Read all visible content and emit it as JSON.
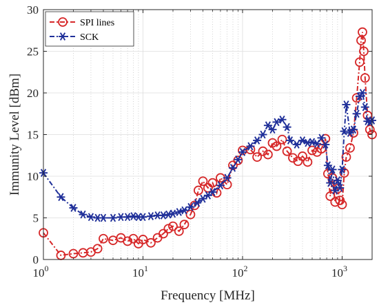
{
  "chart_data": {
    "type": "line",
    "title": "",
    "xlabel": "Frequency [MHz]",
    "ylabel": "Immunity Level  [dBm]",
    "xscale": "log",
    "xlim": [
      1,
      2000
    ],
    "ylim": [
      0,
      30
    ],
    "yticks": [
      0,
      5,
      10,
      15,
      20,
      25,
      30
    ],
    "xticks": [
      1,
      10,
      100,
      1000
    ],
    "xtick_labels": [
      {
        "base": "10",
        "exp": "0"
      },
      {
        "base": "10",
        "exp": "1"
      },
      {
        "base": "10",
        "exp": "2"
      },
      {
        "base": "10",
        "exp": "3"
      }
    ],
    "grid": true,
    "legend_position": "top-left",
    "series": [
      {
        "name": "SPI lines",
        "color": "#d62728",
        "marker": "circle",
        "points": [
          [
            1.0,
            3.2
          ],
          [
            1.5,
            0.5
          ],
          [
            2.0,
            0.7
          ],
          [
            2.5,
            0.8
          ],
          [
            3.0,
            0.9
          ],
          [
            3.5,
            1.3
          ],
          [
            4.0,
            2.5
          ],
          [
            5.0,
            2.3
          ],
          [
            6.0,
            2.6
          ],
          [
            7.0,
            2.2
          ],
          [
            8.0,
            2.5
          ],
          [
            9.0,
            1.9
          ],
          [
            10.0,
            2.4
          ],
          [
            12.0,
            2.0
          ],
          [
            14.0,
            2.6
          ],
          [
            16.0,
            3.1
          ],
          [
            18.0,
            3.7
          ],
          [
            20.0,
            4.0
          ],
          [
            23.0,
            3.4
          ],
          [
            26.0,
            4.2
          ],
          [
            30.0,
            5.4
          ],
          [
            33.0,
            6.5
          ],
          [
            36.0,
            8.3
          ],
          [
            40.0,
            9.4
          ],
          [
            45.0,
            8.6
          ],
          [
            50.0,
            9.2
          ],
          [
            55.0,
            8.0
          ],
          [
            60.0,
            9.8
          ],
          [
            70.0,
            9.0
          ],
          [
            80.0,
            11.3
          ],
          [
            90.0,
            11.9
          ],
          [
            100.0,
            13.1
          ],
          [
            120.0,
            13.2
          ],
          [
            140.0,
            12.3
          ],
          [
            160.0,
            13.0
          ],
          [
            180.0,
            12.6
          ],
          [
            200.0,
            14.0
          ],
          [
            220.0,
            13.6
          ],
          [
            250.0,
            14.4
          ],
          [
            280.0,
            13.0
          ],
          [
            320.0,
            12.2
          ],
          [
            360.0,
            11.8
          ],
          [
            400.0,
            12.4
          ],
          [
            450.0,
            11.7
          ],
          [
            500.0,
            13.1
          ],
          [
            560.0,
            12.9
          ],
          [
            620.0,
            13.3
          ],
          [
            680.0,
            14.5
          ],
          [
            720.0,
            10.3
          ],
          [
            760.0,
            7.6
          ],
          [
            800.0,
            9.8
          ],
          [
            850.0,
            6.9
          ],
          [
            900.0,
            8.5
          ],
          [
            950.0,
            7.1
          ],
          [
            1000.0,
            6.6
          ],
          [
            1050.0,
            10.4
          ],
          [
            1100.0,
            12.3
          ],
          [
            1200.0,
            13.4
          ],
          [
            1300.0,
            15.2
          ],
          [
            1400.0,
            19.4
          ],
          [
            1500.0,
            23.7
          ],
          [
            1550.0,
            26.3
          ],
          [
            1600.0,
            27.3
          ],
          [
            1650.0,
            25.0
          ],
          [
            1700.0,
            21.8
          ],
          [
            1800.0,
            17.3
          ],
          [
            1900.0,
            15.6
          ],
          [
            2000.0,
            15.0
          ]
        ]
      },
      {
        "name": "SCK",
        "color": "#1f2f99",
        "marker": "asterisk",
        "points": [
          [
            1.0,
            10.4
          ],
          [
            1.5,
            7.5
          ],
          [
            2.0,
            6.2
          ],
          [
            2.5,
            5.4
          ],
          [
            3.0,
            5.1
          ],
          [
            3.5,
            5.0
          ],
          [
            4.0,
            5.0
          ],
          [
            5.0,
            5.0
          ],
          [
            6.0,
            5.1
          ],
          [
            7.0,
            5.1
          ],
          [
            8.0,
            5.2
          ],
          [
            9.0,
            5.1
          ],
          [
            10.0,
            5.1
          ],
          [
            12.0,
            5.2
          ],
          [
            14.0,
            5.3
          ],
          [
            16.0,
            5.3
          ],
          [
            18.0,
            5.4
          ],
          [
            20.0,
            5.5
          ],
          [
            23.0,
            5.7
          ],
          [
            26.0,
            5.9
          ],
          [
            30.0,
            6.3
          ],
          [
            35.0,
            6.8
          ],
          [
            40.0,
            7.3
          ],
          [
            45.0,
            7.7
          ],
          [
            50.0,
            8.1
          ],
          [
            60.0,
            8.9
          ],
          [
            70.0,
            9.8
          ],
          [
            80.0,
            11.0
          ],
          [
            90.0,
            12.0
          ],
          [
            100.0,
            12.9
          ],
          [
            120.0,
            13.6
          ],
          [
            140.0,
            14.3
          ],
          [
            160.0,
            15.0
          ],
          [
            180.0,
            16.1
          ],
          [
            200.0,
            15.6
          ],
          [
            220.0,
            16.5
          ],
          [
            250.0,
            16.8
          ],
          [
            280.0,
            15.9
          ],
          [
            300.0,
            14.3
          ],
          [
            350.0,
            13.8
          ],
          [
            400.0,
            14.3
          ],
          [
            450.0,
            14.0
          ],
          [
            500.0,
            14.1
          ],
          [
            560.0,
            13.9
          ],
          [
            620.0,
            14.6
          ],
          [
            680.0,
            13.8
          ],
          [
            720.0,
            11.3
          ],
          [
            760.0,
            9.2
          ],
          [
            800.0,
            10.8
          ],
          [
            850.0,
            8.3
          ],
          [
            900.0,
            9.5
          ],
          [
            950.0,
            8.6
          ],
          [
            1000.0,
            10.8
          ],
          [
            1050.0,
            15.4
          ],
          [
            1100.0,
            18.6
          ],
          [
            1200.0,
            15.2
          ],
          [
            1300.0,
            15.6
          ],
          [
            1400.0,
            17.5
          ],
          [
            1500.0,
            19.6
          ],
          [
            1600.0,
            20.0
          ],
          [
            1700.0,
            18.3
          ],
          [
            1800.0,
            16.6
          ],
          [
            1900.0,
            16.5
          ],
          [
            2000.0,
            16.7
          ]
        ]
      }
    ]
  }
}
